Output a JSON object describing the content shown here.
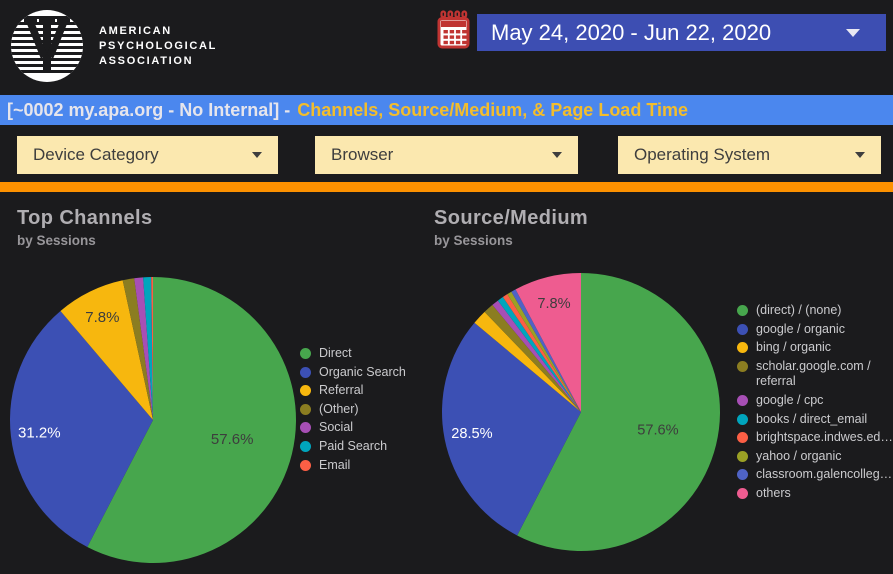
{
  "header": {
    "logo": {
      "lines": [
        "AMERICAN",
        "PSYCHOLOGICAL",
        "ASSOCIATION"
      ]
    },
    "date_range": {
      "value": "May 24, 2020 - Jun 22, 2020"
    }
  },
  "banner": {
    "prefix": "[~0002 my.apa.org - No Internal] -",
    "highlight": "Channels, Source/Medium, & Page Load Time"
  },
  "filters": [
    {
      "label": "Device Category"
    },
    {
      "label": "Browser"
    },
    {
      "label": "Operating System"
    }
  ],
  "theme": {
    "page_bg": "#1b1b1d",
    "banner_bg": "#4b87ee",
    "banner_prefix_color": "#e6e5ec",
    "banner_highlight_color": "#f2bd2d",
    "date_box_bg": "#3d4eb2",
    "filter_bg": "#fbe8af",
    "divider_color": "#fd9100",
    "title_color": "#b0aeb2",
    "subtitle_color": "#98969a",
    "legend_text_color": "#cbcbce"
  },
  "chart_data": [
    {
      "type": "pie",
      "title": "Top Channels",
      "subtitle": "by Sessions",
      "legend_position": "right",
      "label_min_value": 5,
      "labels_shown": [
        "57.6%",
        "31.2%",
        "7.8%"
      ],
      "series": [
        {
          "name": "Direct",
          "value": 57.6,
          "color": "#47a64d"
        },
        {
          "name": "Organic Search",
          "value": 31.2,
          "color": "#3c50b4"
        },
        {
          "name": "Referral",
          "value": 7.8,
          "color": "#f7b70e"
        },
        {
          "name": "(Other)",
          "value": 1.3,
          "color": "#8b7d21"
        },
        {
          "name": "Social",
          "value": 1.0,
          "color": "#a74fb5"
        },
        {
          "name": "Paid Search",
          "value": 0.9,
          "color": "#00a5bd"
        },
        {
          "name": "Email",
          "value": 0.2,
          "color": "#fc5f45"
        }
      ]
    },
    {
      "type": "pie",
      "title": "Source/Medium",
      "subtitle": "by Sessions",
      "legend_position": "right",
      "label_min_value": 5,
      "labels_shown": [
        "57.6%",
        "28.5%",
        "7.8%"
      ],
      "series": [
        {
          "name": "(direct) / (none)",
          "value": 57.6,
          "color": "#47a64d"
        },
        {
          "name": "google / organic",
          "value": 28.5,
          "color": "#3c50b4"
        },
        {
          "name": "bing / organic",
          "value": 1.7,
          "color": "#f7b70e"
        },
        {
          "name": "scholar.google.com / referral",
          "value": 1.2,
          "color": "#8b7d21"
        },
        {
          "name": "google / cpc",
          "value": 0.8,
          "color": "#a74fb5"
        },
        {
          "name": "books / direct_email",
          "value": 0.7,
          "color": "#00a5bd"
        },
        {
          "name": "brightspace.indwes.ed…",
          "value": 0.6,
          "color": "#fc5f45"
        },
        {
          "name": "yahoo / organic",
          "value": 0.55,
          "color": "#9ba125"
        },
        {
          "name": "classroom.galencolleg…",
          "value": 0.55,
          "color": "#4f63c5"
        },
        {
          "name": "others",
          "value": 7.8,
          "color": "#ee5c90"
        }
      ]
    }
  ]
}
